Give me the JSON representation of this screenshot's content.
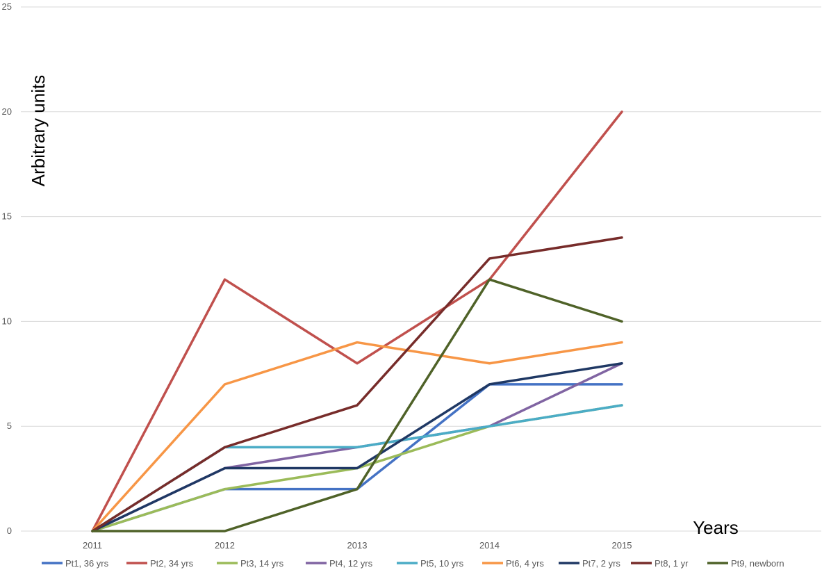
{
  "chart_data": {
    "type": "line",
    "title": "",
    "ylabel": "Arbitrary units",
    "xlabel": "Years",
    "categories": [
      "2011",
      "2012",
      "2013",
      "2014",
      "2015"
    ],
    "ylim": [
      0,
      25
    ],
    "yticks": [
      "0",
      "5",
      "10",
      "15",
      "20",
      "25"
    ],
    "grid": "horizontal",
    "legend_position": "bottom",
    "series": [
      {
        "name": "Pt1, 36 yrs",
        "color": "#4472C4",
        "values": [
          0,
          2,
          2,
          7,
          7
        ]
      },
      {
        "name": "Pt2, 34 yrs",
        "color": "#C0504D",
        "values": [
          0,
          12,
          8,
          12,
          20
        ]
      },
      {
        "name": "Pt3, 14 yrs",
        "color": "#9BBB59",
        "values": [
          0,
          2,
          3,
          5,
          6
        ]
      },
      {
        "name": "Pt4, 12 yrs",
        "color": "#8064A2",
        "values": [
          0,
          3,
          4,
          5,
          8
        ]
      },
      {
        "name": "Pt5, 10 yrs",
        "color": "#4BACC6",
        "values": [
          0,
          4,
          4,
          5,
          6
        ]
      },
      {
        "name": "Pt6,  4 yrs",
        "color": "#F79646",
        "values": [
          0,
          7,
          9,
          8,
          9
        ]
      },
      {
        "name": "Pt7, 2 yrs",
        "color": "#1F3864",
        "values": [
          0,
          3,
          3,
          7,
          8
        ]
      },
      {
        "name": "Pt8, 1 yr",
        "color": "#772C2A",
        "values": [
          0,
          4,
          6,
          13,
          14
        ]
      },
      {
        "name": "Pt9,  newborn",
        "color": "#4F6228",
        "values": [
          0,
          0,
          2,
          12,
          10
        ]
      }
    ]
  }
}
